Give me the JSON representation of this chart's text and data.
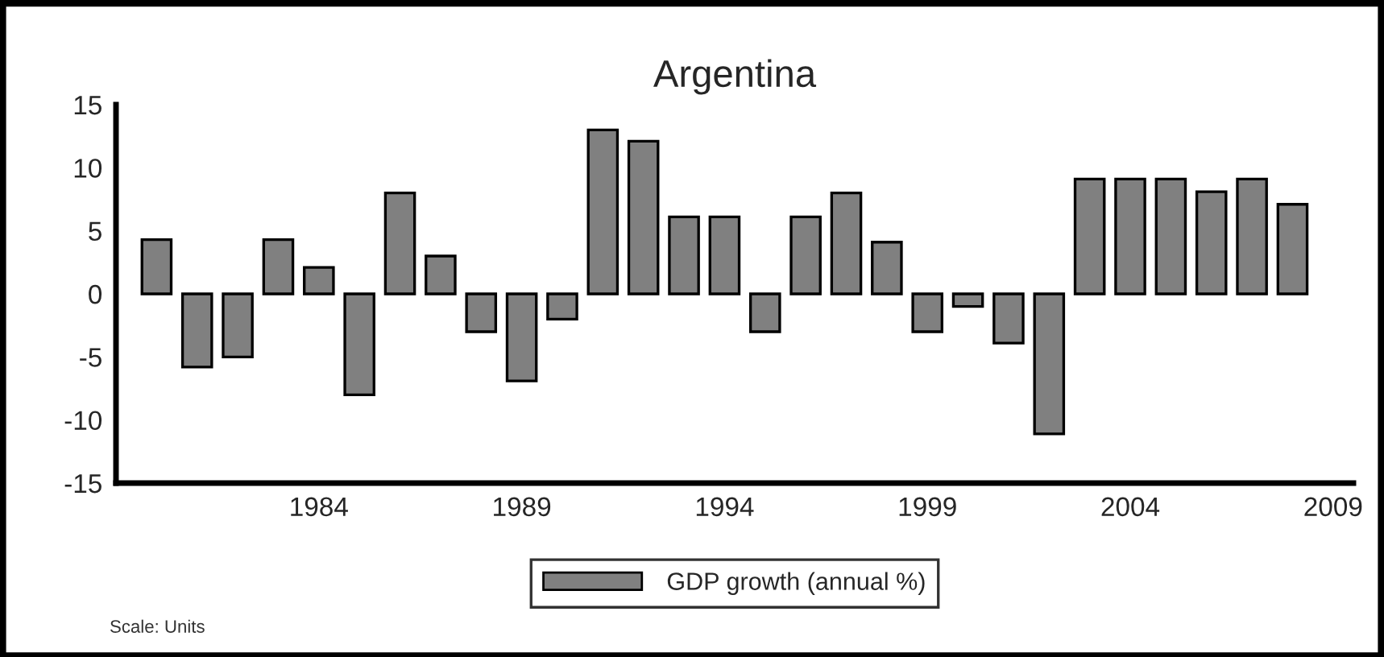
{
  "chart_data": {
    "type": "bar",
    "title": "Argentina",
    "x": [
      1980,
      1981,
      1982,
      1983,
      1984,
      1985,
      1986,
      1987,
      1988,
      1989,
      1990,
      1991,
      1992,
      1993,
      1994,
      1995,
      1996,
      1997,
      1998,
      1999,
      2000,
      2001,
      2002,
      2003,
      2004,
      2005,
      2006,
      2007,
      2008
    ],
    "series": [
      {
        "name": "GDP growth (annual %)",
        "color": "#808080",
        "values": [
          4.3,
          -5.8,
          -5.0,
          4.3,
          2.1,
          -8.0,
          8.0,
          3.0,
          -3.0,
          -6.9,
          -2.0,
          13.0,
          12.1,
          6.1,
          6.1,
          -3.0,
          6.1,
          8.0,
          4.1,
          -3.0,
          -1.0,
          -3.9,
          -11.1,
          9.1,
          9.1,
          9.1,
          8.1,
          9.1,
          7.1
        ]
      }
    ],
    "xlim": [
      1979,
      2009.5
    ],
    "xticks": [
      1984,
      1989,
      1994,
      1999,
      2004,
      2009
    ],
    "ylim": [
      -15,
      15
    ],
    "yticks": [
      -15,
      -10,
      -5,
      0,
      5,
      10,
      15
    ],
    "grid": false,
    "legend": "bottom",
    "annotations": [
      "Scale: Units"
    ]
  }
}
